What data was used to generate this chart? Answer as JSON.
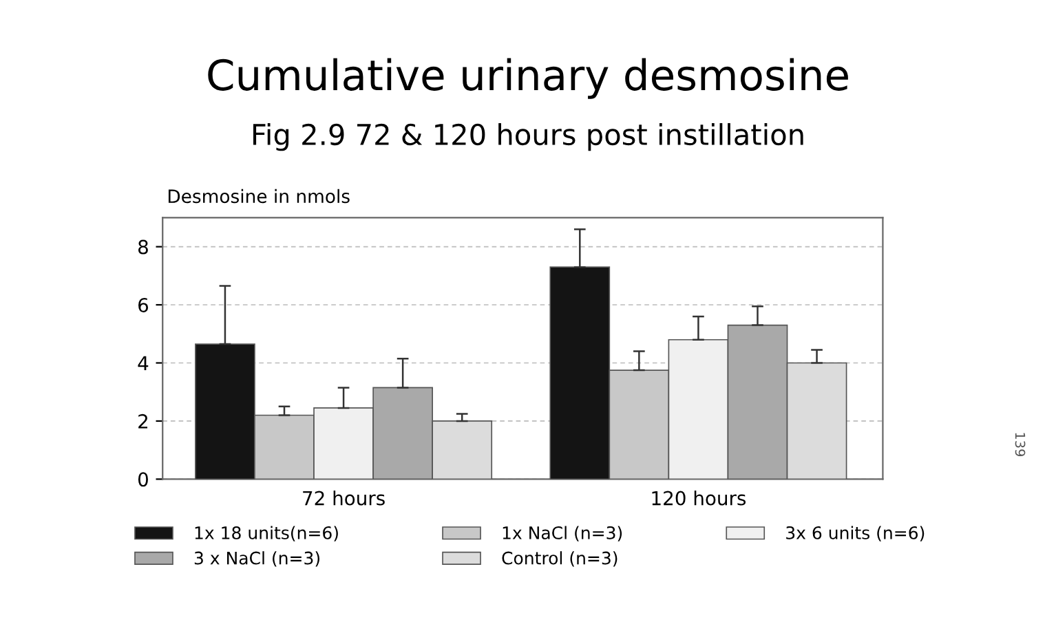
{
  "chart_data": {
    "type": "bar",
    "title": "Cumulative urinary desmosine",
    "subtitle": "Fig 2.9 72 & 120 hours post instillation",
    "ylabel": "Desmosine in nmols",
    "categories": [
      "72 hours",
      "120 hours"
    ],
    "series": [
      {
        "name": "1x 18 units(n=6)",
        "color": "#141414",
        "values": [
          4.65,
          7.3
        ],
        "errors": [
          [
            4.65,
            6.65
          ],
          [
            7.3,
            8.6
          ]
        ]
      },
      {
        "name": "1x NaCl (n=3)",
        "color": "#c8c8c8",
        "values": [
          2.2,
          3.75
        ],
        "errors": [
          [
            2.2,
            2.5
          ],
          [
            3.75,
            4.4
          ]
        ]
      },
      {
        "name": "3x 6 units (n=6)",
        "color": "#f0f0f0",
        "values": [
          2.45,
          4.8
        ],
        "errors": [
          [
            2.45,
            3.15
          ],
          [
            4.8,
            5.6
          ]
        ]
      },
      {
        "name": "3 x NaCl (n=3)",
        "color": "#a9a9a9",
        "values": [
          3.15,
          5.3
        ],
        "errors": [
          [
            3.15,
            4.15
          ],
          [
            5.3,
            5.95
          ]
        ]
      },
      {
        "name": "Control (n=3)",
        "color": "#dcdcdc",
        "values": [
          2.0,
          4.0
        ],
        "errors": [
          [
            2.0,
            2.25
          ],
          [
            4.0,
            4.45
          ]
        ]
      }
    ],
    "ylim": [
      0,
      9
    ],
    "yticks": [
      0,
      2,
      4,
      6,
      8
    ],
    "grid": "y",
    "legend": "bottom",
    "annotations": [
      "139"
    ]
  }
}
